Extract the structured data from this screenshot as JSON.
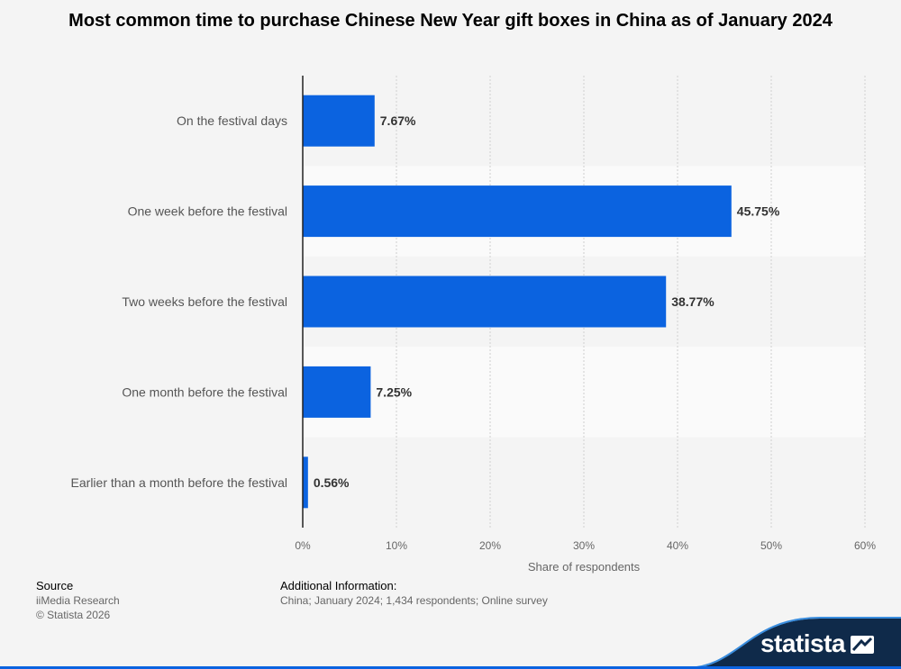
{
  "chart_data": {
    "type": "bar",
    "orientation": "horizontal",
    "title": "Most common time to purchase Chinese New Year gift boxes in China as of January 2024",
    "categories": [
      "On the festival days",
      "One week before the festival",
      "Two weeks before the festival",
      "One month before the festival",
      "Earlier than a month before the festival"
    ],
    "values": [
      7.67,
      45.75,
      38.77,
      7.25,
      0.56
    ],
    "value_labels": [
      "7.67%",
      "45.75%",
      "38.77%",
      "7.25%",
      "0.56%"
    ],
    "xlabel": "Share of respondents",
    "ylabel": "",
    "xlim": [
      0,
      60
    ],
    "x_ticks": [
      "0%",
      "10%",
      "20%",
      "30%",
      "40%",
      "50%",
      "60%"
    ],
    "grid": true,
    "colors": {
      "bar": "#0b63e0"
    }
  },
  "footer": {
    "source_heading": "Source",
    "source_name": "iiMedia Research",
    "copyright": "© Statista 2026",
    "info_heading": "Additional Information:",
    "info_text": "China; January 2024; 1,434 respondents; Online survey"
  },
  "brand": {
    "name": "statista",
    "color": "#0f2a4a"
  }
}
